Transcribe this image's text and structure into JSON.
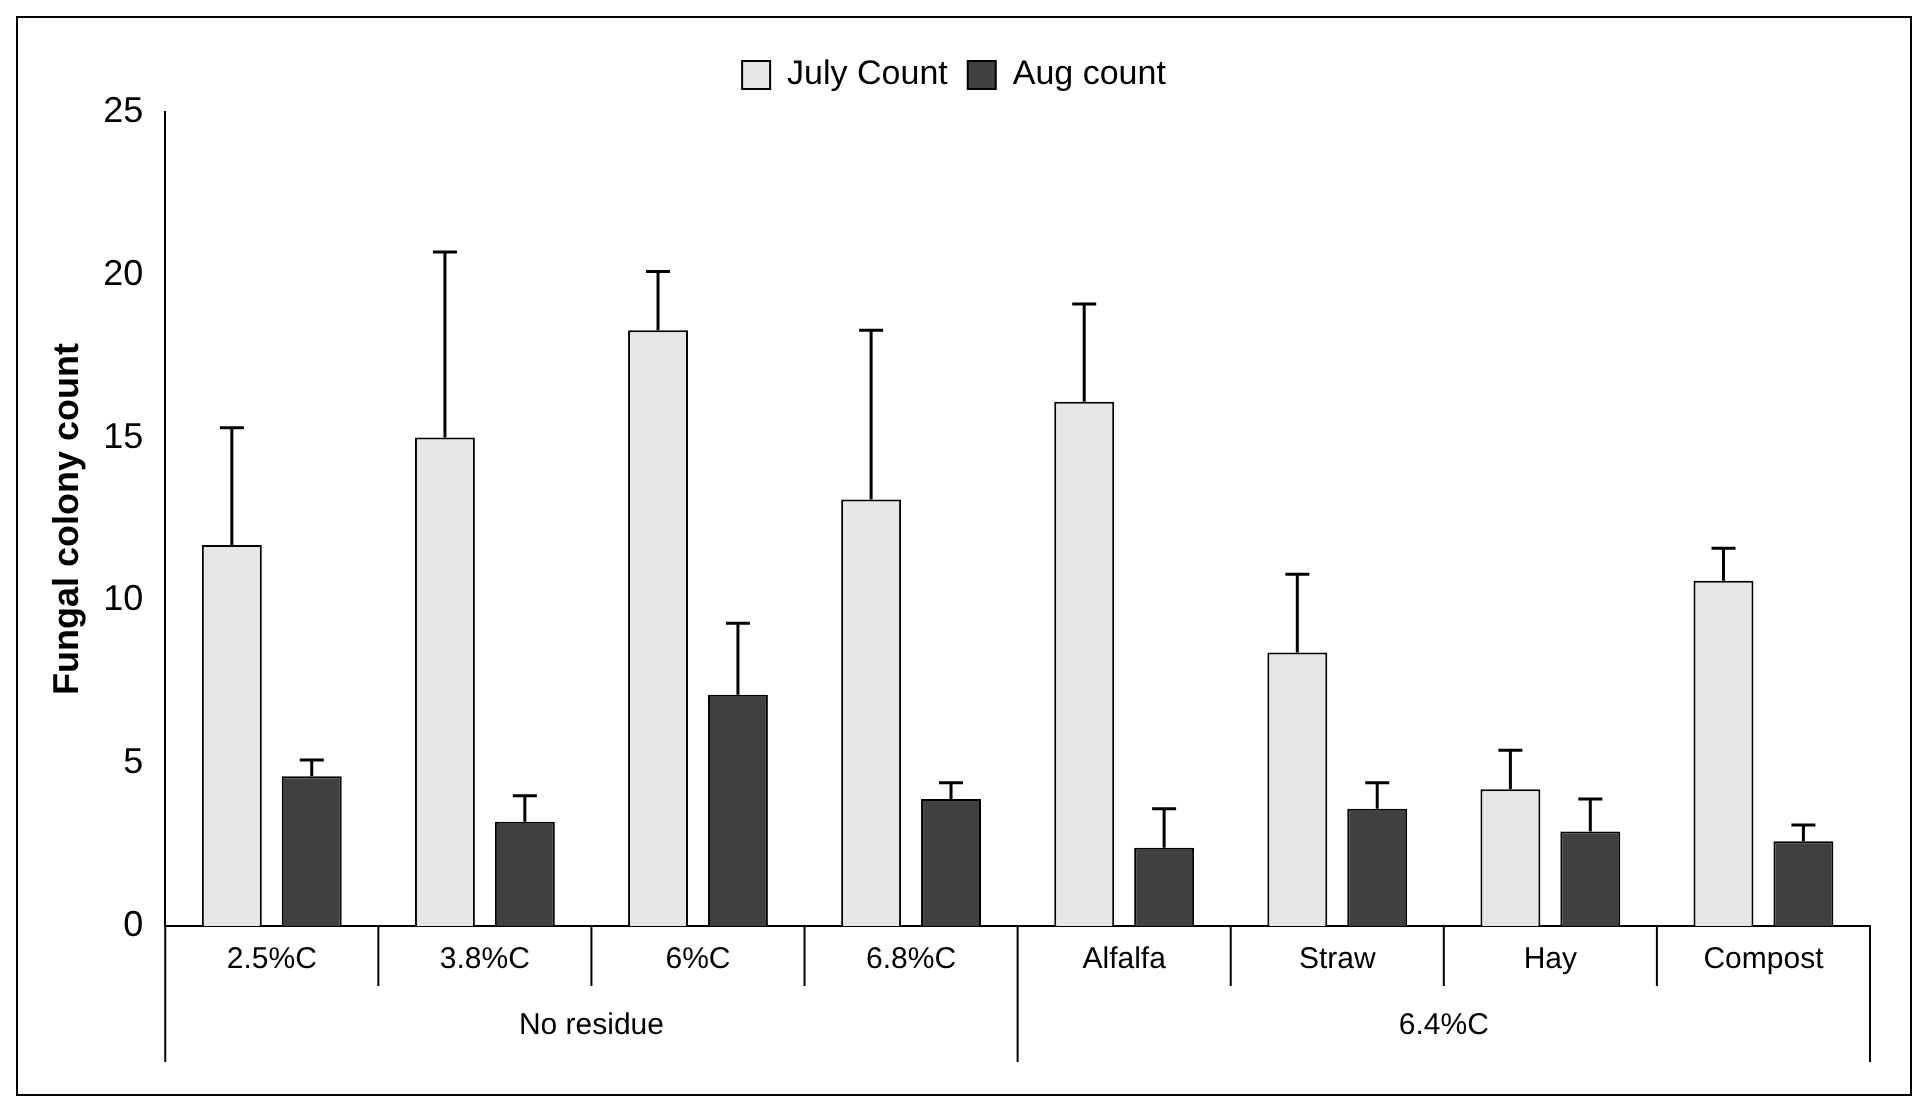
{
  "chart_data": {
    "type": "bar",
    "ylabel": "Fungal colony count",
    "categories": [
      "2.5%C",
      "3.8%C",
      "6%C",
      "6.8%C",
      "Alfalfa",
      "Straw",
      "Hay",
      "Compost"
    ],
    "series": [
      {
        "name": "July Count",
        "color": "#e6e6e6",
        "values": [
          11.7,
          15.0,
          18.3,
          13.1,
          16.1,
          8.4,
          4.2,
          10.6
        ],
        "errors": [
          [
            11.7,
            15.3
          ],
          [
            15.0,
            20.7
          ],
          [
            18.3,
            20.1
          ],
          [
            13.1,
            18.3
          ],
          [
            16.1,
            19.1
          ],
          [
            8.4,
            10.8
          ],
          [
            4.2,
            5.4
          ],
          [
            10.6,
            11.6
          ]
        ]
      },
      {
        "name": "Aug count",
        "color": "#404040",
        "values": [
          4.6,
          3.2,
          7.1,
          3.9,
          2.4,
          3.6,
          2.9,
          2.6
        ],
        "errors": [
          [
            4.6,
            5.1
          ],
          [
            3.2,
            4.0
          ],
          [
            7.1,
            9.3
          ],
          [
            3.9,
            4.4
          ],
          [
            2.4,
            3.6
          ],
          [
            3.6,
            4.4
          ],
          [
            2.9,
            3.9
          ],
          [
            2.6,
            3.1
          ]
        ]
      }
    ],
    "ylim": [
      0,
      25
    ],
    "yticks": [
      0,
      5,
      10,
      15,
      20,
      25
    ],
    "grid": false,
    "legend": "top",
    "annotations": [
      "No residue",
      "6.4%C"
    ]
  }
}
